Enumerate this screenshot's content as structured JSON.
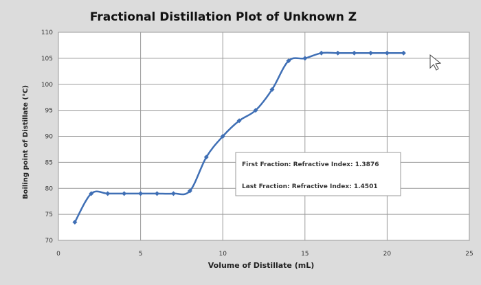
{
  "chart_data": {
    "type": "line",
    "title": "Fractional Distillation Plot of Unknown Z",
    "xlabel": "Volume of Distillate (mL)",
    "ylabel": "Boiling point of Distillate (°C)",
    "xlim": [
      0,
      25
    ],
    "ylim": [
      70,
      110
    ],
    "x_ticks": [
      0,
      5,
      10,
      15,
      20,
      25
    ],
    "y_ticks": [
      70,
      75,
      80,
      85,
      90,
      95,
      100,
      105,
      110
    ],
    "grid": true,
    "series": [
      {
        "color": "#3f6fb5",
        "points": [
          {
            "x": 1,
            "y": 73.5
          },
          {
            "x": 2,
            "y": 79
          },
          {
            "x": 3,
            "y": 79
          },
          {
            "x": 4,
            "y": 79
          },
          {
            "x": 5,
            "y": 79
          },
          {
            "x": 6,
            "y": 79
          },
          {
            "x": 7,
            "y": 79
          },
          {
            "x": 8,
            "y": 79.5
          },
          {
            "x": 9,
            "y": 86
          },
          {
            "x": 10,
            "y": 90
          },
          {
            "x": 11,
            "y": 93
          },
          {
            "x": 12,
            "y": 95
          },
          {
            "x": 13,
            "y": 99
          },
          {
            "x": 14,
            "y": 104.5
          },
          {
            "x": 15,
            "y": 105
          },
          {
            "x": 16,
            "y": 106
          },
          {
            "x": 17,
            "y": 106
          },
          {
            "x": 18,
            "y": 106
          },
          {
            "x": 19,
            "y": 106
          },
          {
            "x": 20,
            "y": 106
          },
          {
            "x": 21,
            "y": 106
          }
        ]
      }
    ],
    "annotations": [
      "First Fraction: Refractive Index: 1.3876",
      "Last Fraction: Refractive Index: 1.4501"
    ]
  }
}
